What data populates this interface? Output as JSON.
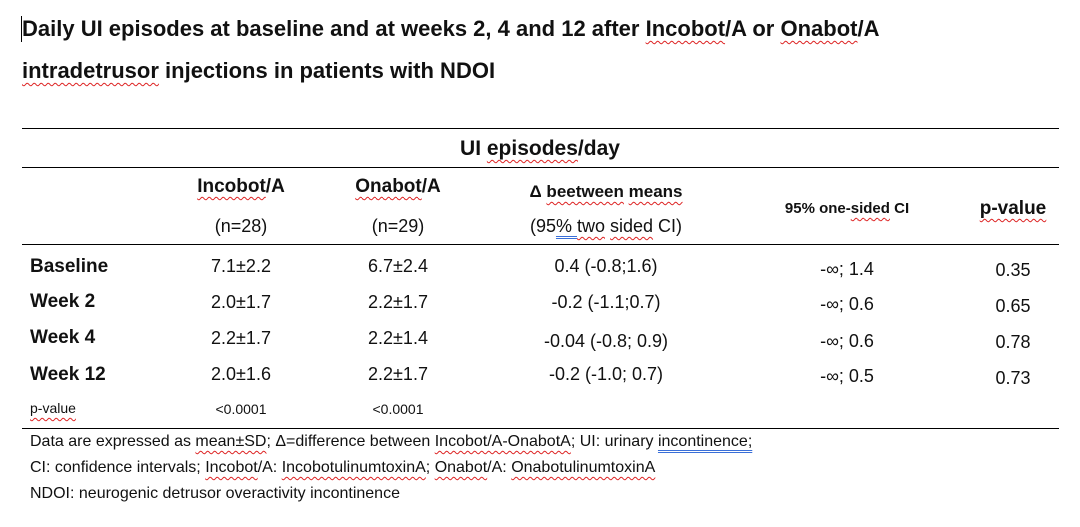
{
  "title": {
    "line1_parts": [
      "Daily UI episodes at baseline and at weeks 2, 4 and 12 after ",
      "Incobot",
      "/A or ",
      "Onabot",
      "/A"
    ],
    "line2_parts": [
      "intradetrusor",
      " injections in patients with NDOI"
    ]
  },
  "table": {
    "group_header_parts": [
      "UI ",
      "episodes",
      "/day"
    ],
    "columns": {
      "incobot_parts": [
        "Incobot",
        "/A"
      ],
      "incobot_n": "(n=28)",
      "onabot_parts": [
        "Onabot",
        "/A"
      ],
      "onabot_n": "(n=29)",
      "delta_parts": [
        "Δ ",
        "beetween",
        " ",
        "means"
      ],
      "delta_sub_parts": [
        "(95",
        "%  ",
        "two",
        " ",
        "sided",
        " CI)"
      ],
      "ci_parts": [
        "95% one-",
        "sided",
        " CI"
      ],
      "pvalue": "p-value"
    },
    "rows": [
      {
        "label": "Baseline",
        "incobot": "7.1±2.2",
        "onabot": "6.7±2.4",
        "delta": "0.4 (-0.8;1.6)",
        "ci": "-∞; 1.4",
        "p": "0.35"
      },
      {
        "label": "Week 2",
        "incobot": "2.0±1.7",
        "onabot": "2.2±1.7",
        "delta": "-0.2 (-1.1;0.7)",
        "ci": "-∞; 0.6",
        "p": "0.65"
      },
      {
        "label": "Week 4",
        "incobot": "2.2±1.7",
        "onabot": "2.2±1.4",
        "delta": "-0.04 (-0.8; 0.9)",
        "ci": "-∞; 0.6",
        "p": "0.78"
      },
      {
        "label": "Week 12",
        "incobot": "2.0±1.6",
        "onabot": "2.2±1.7",
        "delta": "-0.2 (-1.0; 0.7)",
        "ci": "-∞; 0.5",
        "p": "0.73"
      }
    ],
    "pvalue_row": {
      "label": "p-value",
      "incobot": "<0.0001",
      "onabot": "<0.0001"
    }
  },
  "footnotes": {
    "line1_parts": [
      "Data are expressed as ",
      "mean±SD",
      "; Δ=difference between ",
      "Incobot/A-OnabotA",
      "; UI: urinary ",
      "incontinence;"
    ],
    "line2_parts": [
      "CI: confidence intervals; ",
      "Incobot",
      "/A: ",
      "IncobotulinumtoxinA",
      "; ",
      "Onabot",
      "/A: ",
      "OnabotulinumtoxinA"
    ],
    "line3": "NDOI: neurogenic detrusor overactivity incontinence"
  }
}
